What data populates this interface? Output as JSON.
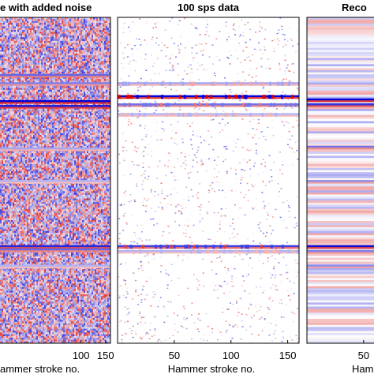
{
  "chart_data": [
    {
      "type": "heatmap",
      "title": "... with added noise",
      "title_visible": "e with added noise",
      "xlabel": "Hammer stroke no.",
      "xlabel_visible": "ammer stroke no.",
      "xticks": [
        100,
        150
      ],
      "xlim": [
        0,
        160
      ],
      "colormap": "blue-white-red",
      "noise": "strong",
      "dark_bands": [
        {
          "row": 0.18,
          "strength": 0.6
        },
        {
          "row": 0.205,
          "strength": 0.5
        },
        {
          "row": 0.26,
          "strength": 1.0
        },
        {
          "row": 0.275,
          "strength": 0.9
        },
        {
          "row": 0.405,
          "strength": 0.35
        },
        {
          "row": 0.505,
          "strength": 0.3
        },
        {
          "row": 0.705,
          "strength": 0.85
        },
        {
          "row": 0.715,
          "strength": 0.6
        },
        {
          "row": 0.765,
          "strength": 0.3
        }
      ]
    },
    {
      "type": "heatmap",
      "title": "100 sps data",
      "title_visible": "100 sps data",
      "xlabel": "Hammer stroke no.",
      "xlabel_visible": "Hammer stroke no.",
      "xticks": [
        50,
        100,
        150
      ],
      "xlim": [
        0,
        160
      ],
      "colormap": "blue-white-red",
      "noise": "sparse",
      "dark_bands": [
        {
          "row": 0.205,
          "strength": 0.35
        },
        {
          "row": 0.245,
          "strength": 1.0
        },
        {
          "row": 0.27,
          "strength": 0.55
        },
        {
          "row": 0.3,
          "strength": 0.3
        },
        {
          "row": 0.705,
          "strength": 0.75
        },
        {
          "row": 0.72,
          "strength": 0.3
        }
      ]
    },
    {
      "type": "heatmap",
      "title": "Reconstructed ...",
      "title_visible": "Reco",
      "xlabel": "Hammer stroke no.",
      "xlabel_visible": "Ham",
      "xticks": [
        50
      ],
      "xlim": [
        0,
        160
      ],
      "colormap": "blue-white-red",
      "noise": "smooth-horizontal",
      "dark_bands": [
        {
          "row": 0.255,
          "strength": 1.0
        },
        {
          "row": 0.27,
          "strength": 0.8
        },
        {
          "row": 0.4,
          "strength": 0.55
        },
        {
          "row": 0.505,
          "strength": 0.45
        },
        {
          "row": 0.705,
          "strength": 0.95
        },
        {
          "row": 0.72,
          "strength": 0.5
        },
        {
          "row": 0.765,
          "strength": 0.45
        }
      ]
    }
  ]
}
